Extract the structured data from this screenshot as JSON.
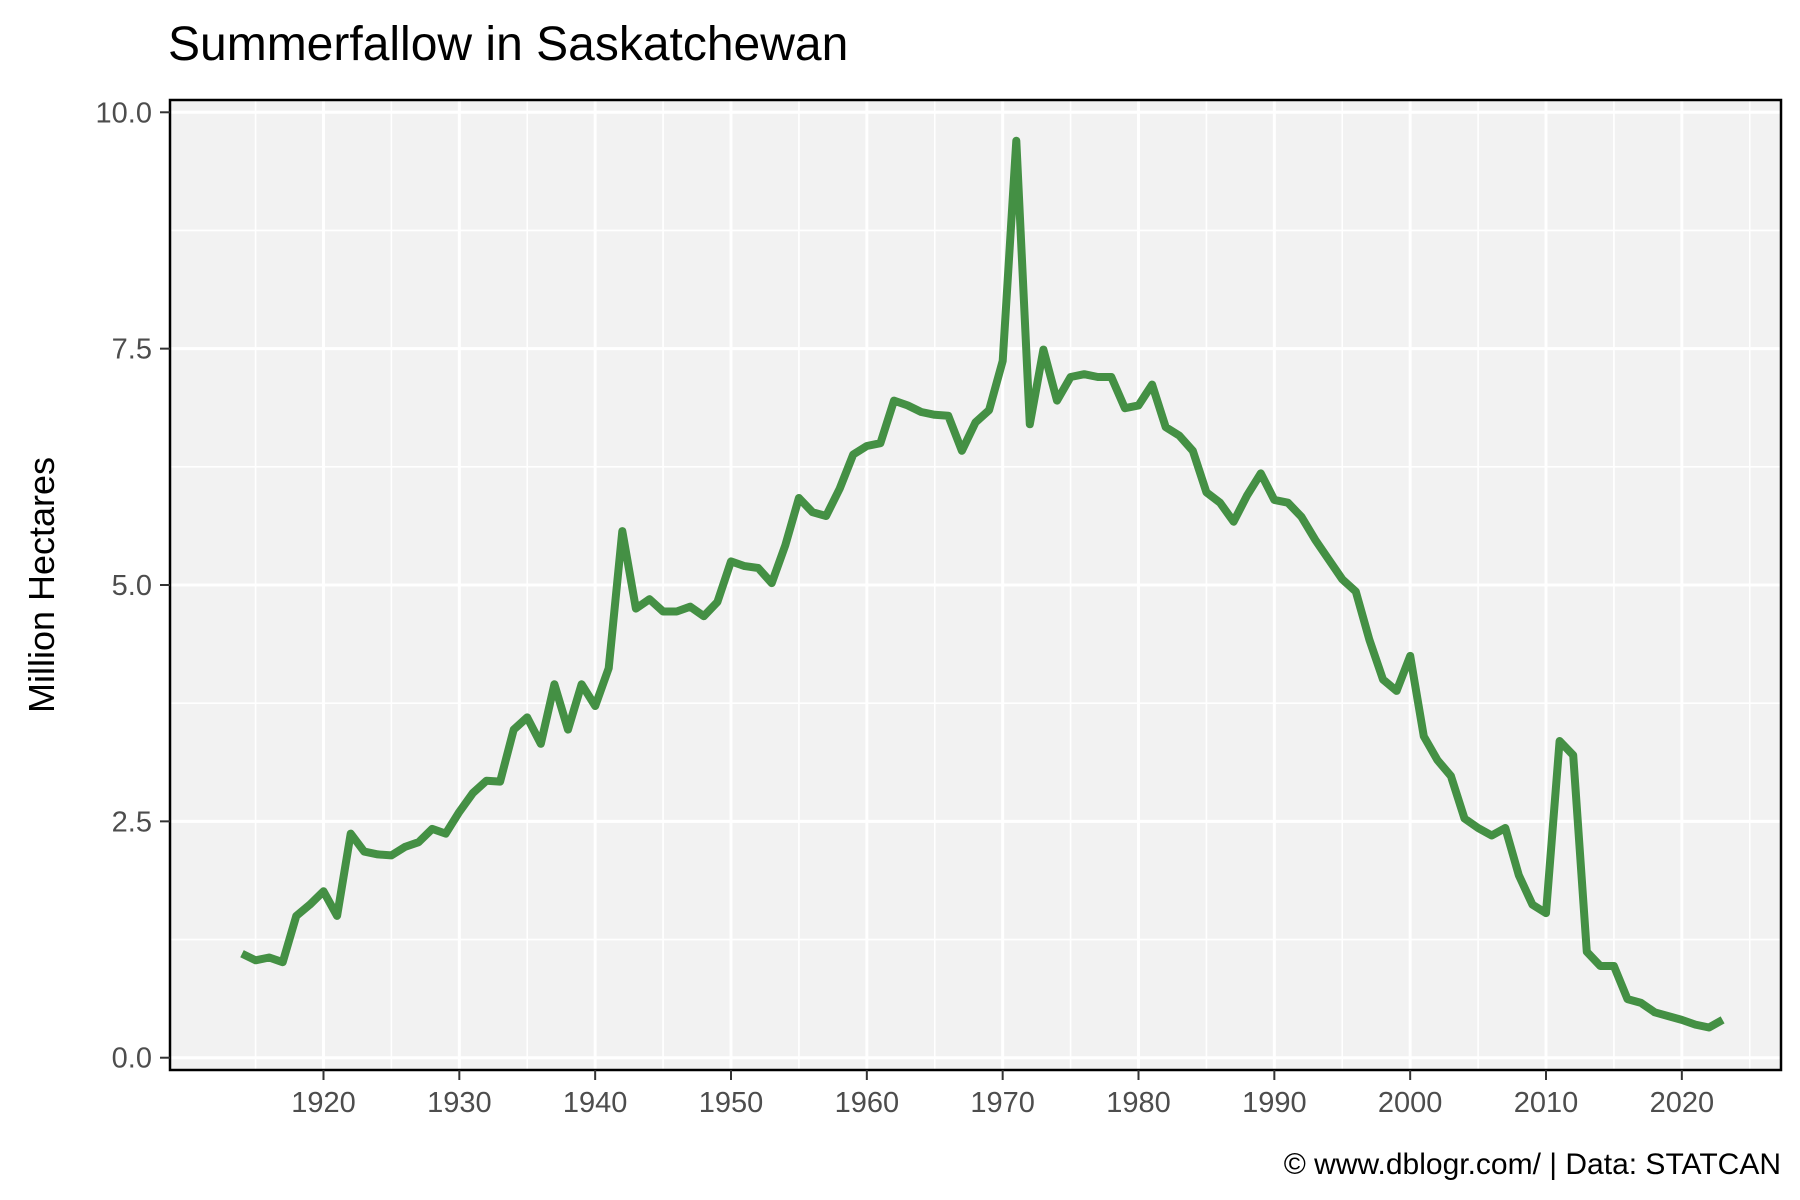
{
  "chart_data": {
    "type": "line",
    "title": "Summerfallow in Saskatchewan",
    "xlabel": "",
    "ylabel": "Million Hectares",
    "caption": "© www.dblogr.com/  |  Data: STATCAN",
    "xlim": [
      1908.7,
      2027.3
    ],
    "ylim": [
      -0.13,
      10.13
    ],
    "x_ticks": [
      1920,
      1930,
      1940,
      1950,
      1960,
      1970,
      1980,
      1990,
      2000,
      2010,
      2020
    ],
    "x_tick_labels": [
      "1920",
      "1930",
      "1940",
      "1950",
      "1960",
      "1970",
      "1980",
      "1990",
      "2000",
      "2010",
      "2020"
    ],
    "y_ticks": [
      0,
      2.5,
      5,
      7.5,
      10
    ],
    "y_tick_labels": [
      "0.0",
      "2.5",
      "5.0",
      "7.5",
      "10.0"
    ],
    "grid": true,
    "panel_background": "#f2f2f2",
    "line_color": "#3a8a3a",
    "series": [
      {
        "x": [
          1914,
          1915,
          1916,
          1917,
          1918,
          1919,
          1920,
          1921,
          1922,
          1923,
          1924,
          1925,
          1926,
          1927,
          1928,
          1929,
          1930,
          1931,
          1932,
          1933,
          1934,
          1935,
          1936,
          1937,
          1938,
          1939,
          1940,
          1941,
          1942,
          1943,
          1944,
          1945,
          1946,
          1947,
          1948,
          1949,
          1950,
          1951,
          1952,
          1953,
          1954,
          1955,
          1956,
          1957,
          1958,
          1959,
          1960,
          1961,
          1962,
          1963,
          1964,
          1965,
          1966,
          1967,
          1968,
          1969,
          1970,
          1971,
          1972,
          1973,
          1974,
          1975,
          1976,
          1977,
          1978,
          1979,
          1980,
          1981,
          1982,
          1983,
          1984,
          1985,
          1986,
          1987,
          1988,
          1989,
          1990,
          1991,
          1992,
          1993,
          1994,
          1995,
          1996,
          1997,
          1998,
          1999,
          2000,
          2001,
          2002,
          2003,
          2004,
          2005,
          2006,
          2007,
          2008,
          2009,
          2010,
          2011,
          2012,
          2013,
          2014,
          2015,
          2016,
          2017,
          2018,
          2019,
          2020,
          2021,
          2022,
          2023
        ],
        "values": [
          1.1,
          1.03,
          1.06,
          1.01,
          1.5,
          1.62,
          1.76,
          1.5,
          2.37,
          2.18,
          2.15,
          2.14,
          2.23,
          2.28,
          2.42,
          2.37,
          2.6,
          2.8,
          2.93,
          2.92,
          3.47,
          3.6,
          3.32,
          3.95,
          3.47,
          3.95,
          3.72,
          4.12,
          5.57,
          4.75,
          4.85,
          4.72,
          4.72,
          4.77,
          4.67,
          4.82,
          5.25,
          5.2,
          5.18,
          5.02,
          5.42,
          5.92,
          5.77,
          5.73,
          6.02,
          6.38,
          6.47,
          6.5,
          6.95,
          6.9,
          6.83,
          6.8,
          6.79,
          6.42,
          6.72,
          6.85,
          7.37,
          9.7,
          6.7,
          7.49,
          6.95,
          7.2,
          7.23,
          7.2,
          7.2,
          6.87,
          6.9,
          7.12,
          6.67,
          6.58,
          6.42,
          5.98,
          5.87,
          5.67,
          5.95,
          6.18,
          5.9,
          5.87,
          5.72,
          5.48,
          5.27,
          5.06,
          4.93,
          4.42,
          4.0,
          3.88,
          4.25,
          3.4,
          3.15,
          2.98,
          2.53,
          2.43,
          2.35,
          2.43,
          1.93,
          1.62,
          1.53,
          3.35,
          3.2,
          1.12,
          0.97,
          0.97,
          0.62,
          0.58,
          0.48,
          0.44,
          0.4,
          0.35,
          0.32,
          0.4
        ]
      }
    ]
  }
}
